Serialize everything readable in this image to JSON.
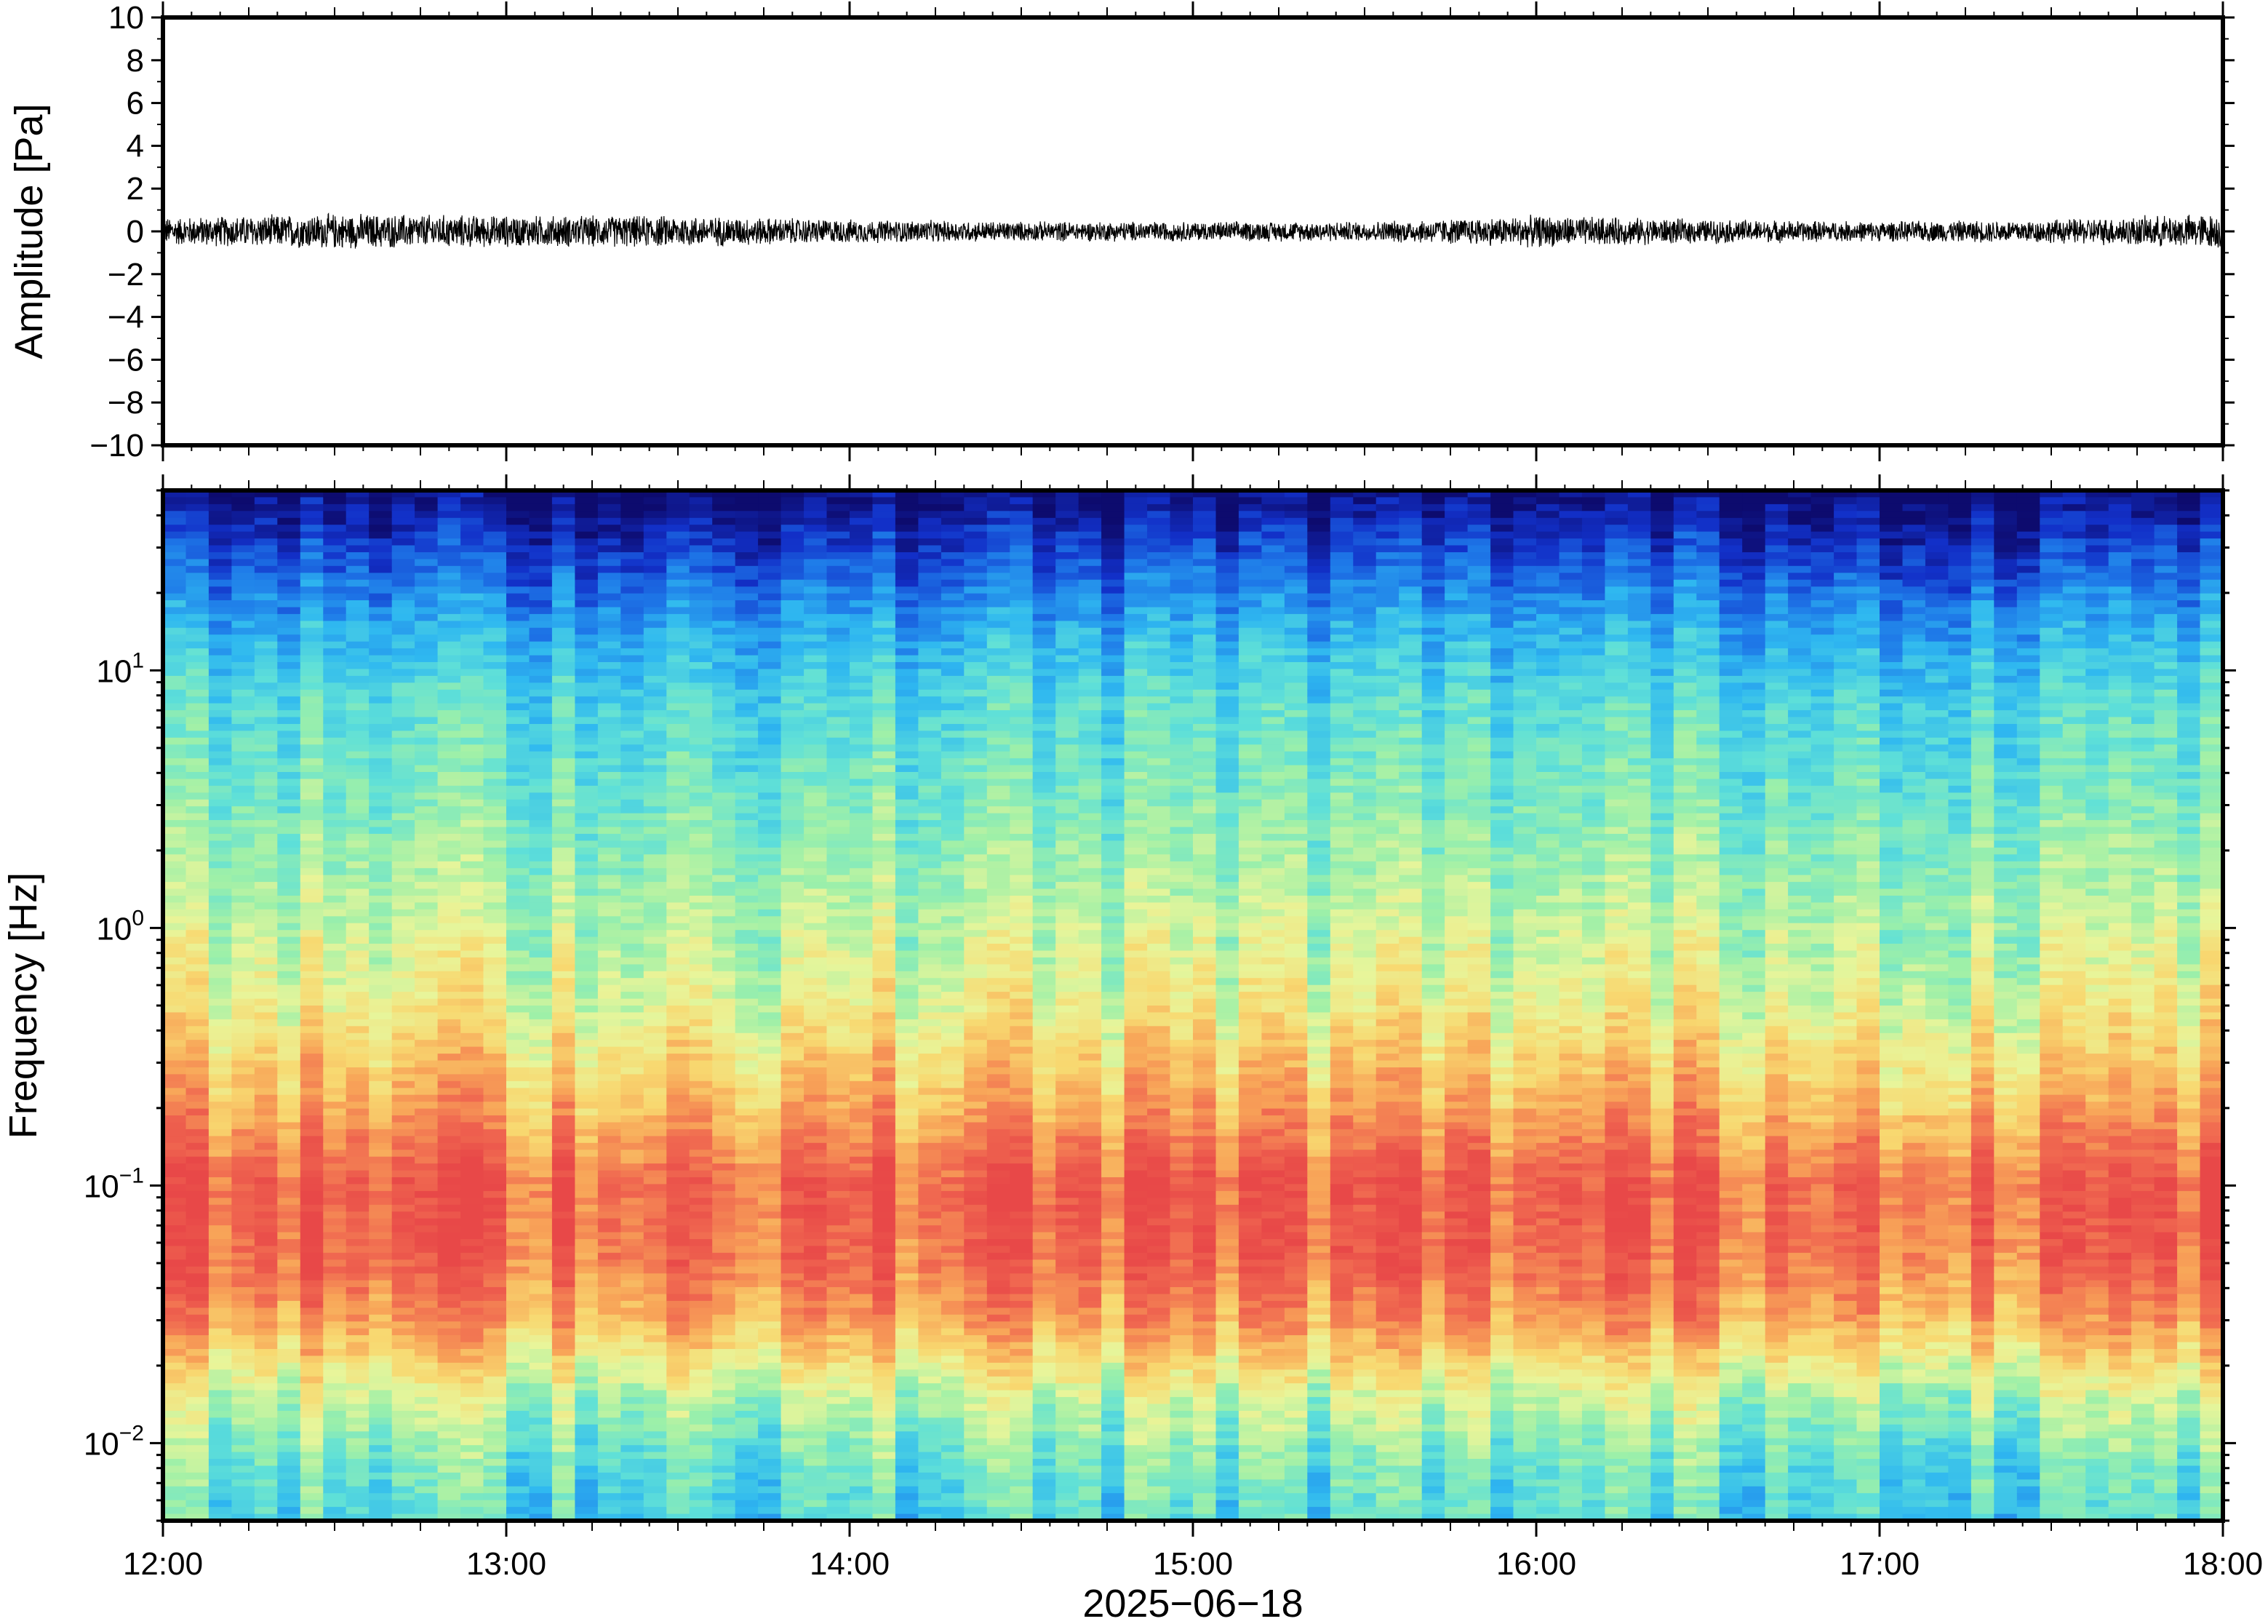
{
  "chart_data": [
    {
      "type": "line",
      "panel": "waveform",
      "ylabel": "Amplitude [Pa]",
      "ylim": [
        -10,
        10
      ],
      "yticks": [
        10,
        8,
        6,
        4,
        2,
        0,
        -2,
        -4,
        -6,
        -8,
        -10
      ],
      "ytick_labels": [
        "10",
        "8",
        "6",
        "4",
        "2",
        "0",
        "−2",
        "−4",
        "−6",
        "−8",
        "−10"
      ],
      "series": [
        {
          "color": "#000000",
          "envelope_x": [
            "12:00",
            "12:30",
            "13:00",
            "13:30",
            "14:00",
            "14:30",
            "15:00",
            "15:30",
            "16:00",
            "16:30",
            "17:00",
            "17:30",
            "18:00"
          ],
          "envelope_amplitude": [
            0.7,
            0.9,
            0.8,
            0.8,
            0.6,
            0.5,
            0.5,
            0.5,
            0.8,
            0.6,
            0.5,
            0.6,
            0.9
          ]
        }
      ]
    },
    {
      "type": "heatmap",
      "panel": "spectrogram",
      "ylabel": "Frequency [Hz]",
      "yscale": "log",
      "ylim": [
        0.005,
        50
      ],
      "yticks": [
        0.01,
        0.1,
        1,
        10
      ],
      "ytick_labels": [
        {
          "base": "10",
          "exp": "−2"
        },
        {
          "base": "10",
          "exp": "−1"
        },
        {
          "base": "10",
          "exp": "0"
        },
        {
          "base": "10",
          "exp": "1"
        }
      ],
      "xlabel": "2025−06−18",
      "xlim": [
        "12:00",
        "18:00"
      ],
      "xtick_labels": [
        "12:00",
        "13:00",
        "14:00",
        "15:00",
        "16:00",
        "17:00",
        "18:00"
      ],
      "colormap": [
        "#0d0b6e",
        "#1230c8",
        "#1e78e8",
        "#2fb8f0",
        "#5fe0d8",
        "#9ef0a8",
        "#e8f59a",
        "#f8d870",
        "#f8a458",
        "#f06850",
        "#e84848"
      ],
      "power_profile_freq": [
        50,
        30,
        15,
        8,
        3,
        1,
        0.5,
        0.2,
        0.1,
        0.05,
        0.03,
        0.015,
        0.008,
        0.005
      ],
      "power_profile_level": [
        0.0,
        0.12,
        0.28,
        0.38,
        0.45,
        0.55,
        0.62,
        0.78,
        0.93,
        0.9,
        0.8,
        0.55,
        0.42,
        0.38
      ]
    }
  ]
}
